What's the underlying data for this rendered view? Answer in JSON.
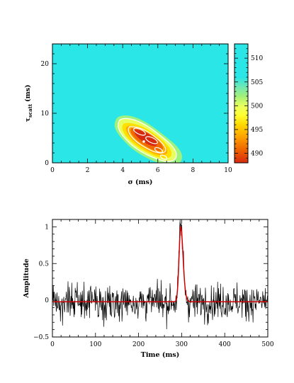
{
  "chart_data": [
    {
      "type": "heatmap",
      "xlabel": "σ (ms)",
      "ylabel": "τ",
      "ylabel_sub": "scatt",
      "ylabel_unit": "(ms)",
      "xlim": [
        0,
        10
      ],
      "ylim": [
        0,
        24
      ],
      "x_ticks": [
        0,
        2,
        4,
        6,
        8,
        10
      ],
      "y_ticks": [
        0,
        10,
        20
      ],
      "colorbar": {
        "range": [
          488,
          513
        ],
        "ticks": [
          490,
          495,
          500,
          505,
          510
        ],
        "colors": [
          {
            "v": 488,
            "c": "#d62a10"
          },
          {
            "v": 491,
            "c": "#f06a00"
          },
          {
            "v": 494,
            "c": "#ffae00"
          },
          {
            "v": 496,
            "c": "#ffd800"
          },
          {
            "v": 498,
            "c": "#ffff30"
          },
          {
            "v": 500,
            "c": "#e8ff60"
          },
          {
            "v": 502,
            "c": "#a2f07a"
          },
          {
            "v": 504,
            "c": "#6ee8b4"
          },
          {
            "v": 506,
            "c": "#2ae6e6"
          },
          {
            "v": 513,
            "c": "#2ae6e6"
          }
        ]
      },
      "minimum": {
        "x": 5.2,
        "y": 4.3,
        "value": 488
      }
    },
    {
      "type": "line",
      "xlabel": "Time (ms)",
      "ylabel": "Amplitude",
      "xlim": [
        0,
        500
      ],
      "ylim": [
        -0.5,
        1.1
      ],
      "x_ticks": [
        0,
        100,
        200,
        300,
        400,
        500
      ],
      "y_ticks": [
        -0.5,
        0,
        0.5,
        1
      ],
      "y_tick_labels": [
        "−0.5",
        "0",
        "0.5",
        "1"
      ],
      "series": [
        {
          "color": "#000000",
          "kind": "noisy profile",
          "noise_rms": 0.12,
          "samples": 512
        },
        {
          "color": "#d00000",
          "kind": "fit",
          "baseline": -0.02,
          "peak_x": 302,
          "peak_y": 1.0
        }
      ]
    }
  ]
}
